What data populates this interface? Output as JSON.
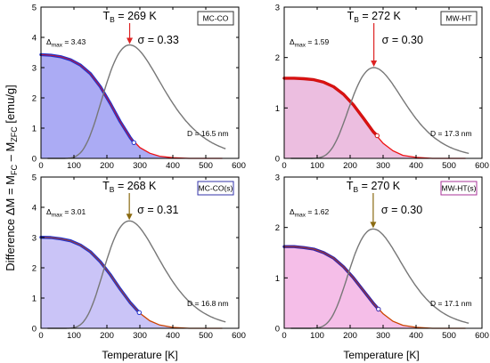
{
  "figure": {
    "ylabel": "Difference  ΔM = M",
    "ylabel_sub1": "FC",
    "ylabel_mid": " – M",
    "ylabel_sub2": "ZFC",
    "ylabel_unit": "  [emu/g]",
    "xlabel_left": "Temperature [K]",
    "xlabel_right": "Temperature [K]"
  },
  "chart_data": [
    {
      "type": "line",
      "panel": "top-left",
      "label": "MC-CO",
      "label_color": "#333333",
      "fill_color": "#8f8ff0",
      "data_color": "#2233cc",
      "fit_color": "#ee1111",
      "arrow_color": "#dd2222",
      "TB_text": "T",
      "TB_sub": "B",
      "TB_value": " = 269 K",
      "TB": 269,
      "sigma_text": "σ = 0.33",
      "sigma": 0.33,
      "delta_text": "Δ",
      "delta_sub": "max",
      "delta_value": " = 3.43",
      "delta_max": 3.43,
      "D_text": "D = 16.5 nm",
      "dist_peak": 3.75,
      "data_end_T": 282,
      "xlim": [
        0,
        600
      ],
      "ylim": [
        0,
        5
      ],
      "xticks": [
        0,
        100,
        200,
        300,
        400,
        500,
        600
      ],
      "yticks": [
        0,
        1,
        2,
        3,
        4,
        5
      ],
      "series": [
        {
          "type": "area",
          "x": [
            0,
            30,
            60,
            90,
            120,
            150,
            180,
            210,
            240,
            270,
            300,
            330,
            360,
            400,
            450,
            500,
            550
          ],
          "y": [
            3.43,
            3.41,
            3.36,
            3.26,
            3.08,
            2.8,
            2.37,
            1.82,
            1.22,
            0.7,
            0.36,
            0.17,
            0.07,
            0.02,
            0.0,
            0.0,
            0.0
          ]
        },
        {
          "type": "line",
          "x": [
            0,
            30,
            60,
            90,
            120,
            150,
            180,
            210,
            240,
            270,
            282
          ],
          "y": [
            3.43,
            3.41,
            3.36,
            3.26,
            3.08,
            2.8,
            2.37,
            1.82,
            1.22,
            0.7,
            0.52
          ]
        }
      ]
    },
    {
      "type": "line",
      "panel": "top-right",
      "label": "MW-HT",
      "label_color": "#333333",
      "fill_color": "#e6a8d6",
      "data_color": "#cc1111",
      "fit_color": "#ee1111",
      "arrow_color": "#dd2222",
      "TB_text": "T",
      "TB_sub": "B",
      "TB_value": " = 272 K",
      "TB": 272,
      "sigma_text": "σ = 0.30",
      "sigma": 0.3,
      "delta_text": "Δ",
      "delta_sub": "max",
      "delta_value": " = 1.59",
      "delta_max": 1.59,
      "D_text": "D = 17.3 nm",
      "dist_peak": 1.8,
      "data_end_T": 282,
      "xlim": [
        0,
        600
      ],
      "ylim": [
        0,
        3
      ],
      "xticks": [
        0,
        100,
        200,
        300,
        400,
        500,
        600
      ],
      "yticks": [
        0,
        1,
        2,
        3
      ],
      "series": [
        {
          "type": "area",
          "x": [
            0,
            30,
            60,
            90,
            120,
            150,
            180,
            210,
            240,
            270,
            300,
            330,
            360,
            400,
            450,
            500,
            550
          ],
          "y": [
            1.59,
            1.59,
            1.58,
            1.56,
            1.51,
            1.42,
            1.27,
            1.06,
            0.8,
            0.53,
            0.3,
            0.15,
            0.06,
            0.02,
            0.0,
            0.0,
            0.0
          ]
        },
        {
          "type": "line",
          "x": [
            0,
            30,
            60,
            90,
            120,
            150,
            180,
            210,
            240,
            270,
            282
          ],
          "y": [
            1.59,
            1.59,
            1.58,
            1.56,
            1.51,
            1.42,
            1.27,
            1.06,
            0.8,
            0.53,
            0.45
          ]
        }
      ]
    },
    {
      "type": "line",
      "panel": "bottom-left",
      "label": "MC-CO(s)",
      "label_color": "#3333aa",
      "fill_color": "#b8b0f4",
      "data_color": "#2233cc",
      "fit_color": "#cc4400",
      "arrow_color": "#8a6a10",
      "TB_text": "T",
      "TB_sub": "B",
      "TB_value": " = 268 K",
      "TB": 268,
      "sigma_text": "σ = 0.31",
      "sigma": 0.31,
      "delta_text": "Δ",
      "delta_sub": "max",
      "delta_value": " = 3.01",
      "delta_max": 3.01,
      "D_text": "D = 16.8 nm",
      "dist_peak": 3.55,
      "data_end_T": 298,
      "xlim": [
        0,
        600
      ],
      "ylim": [
        0,
        5
      ],
      "xticks": [
        0,
        100,
        200,
        300,
        400,
        500,
        600
      ],
      "yticks": [
        0,
        1,
        2,
        3,
        4,
        5
      ],
      "series": [
        {
          "type": "area",
          "x": [
            0,
            30,
            60,
            90,
            120,
            150,
            180,
            210,
            240,
            270,
            300,
            330,
            360,
            400,
            450,
            500,
            550
          ],
          "y": [
            3.01,
            3.0,
            2.96,
            2.89,
            2.75,
            2.53,
            2.2,
            1.78,
            1.3,
            0.86,
            0.5,
            0.25,
            0.11,
            0.03,
            0.0,
            0.0,
            0.0
          ]
        },
        {
          "type": "line",
          "x": [
            0,
            30,
            60,
            90,
            120,
            150,
            180,
            210,
            240,
            270,
            298
          ],
          "y": [
            3.01,
            3.0,
            2.96,
            2.89,
            2.75,
            2.53,
            2.2,
            1.78,
            1.3,
            0.86,
            0.52
          ]
        }
      ]
    },
    {
      "type": "line",
      "panel": "bottom-right",
      "label": "MW-HT(s)",
      "label_color": "#aa3399",
      "fill_color": "#f2a8e0",
      "data_color": "#3322aa",
      "fit_color": "#cc4400",
      "arrow_color": "#8a6a10",
      "TB_text": "T",
      "TB_sub": "B",
      "TB_value": " = 270 K",
      "TB": 270,
      "sigma_text": "σ = 0.30",
      "sigma": 0.3,
      "delta_text": "Δ",
      "delta_sub": "max",
      "delta_value": " = 1.62",
      "delta_max": 1.62,
      "D_text": "D = 17.1 nm",
      "dist_peak": 1.97,
      "data_end_T": 286,
      "xlim": [
        0,
        600
      ],
      "ylim": [
        0,
        3
      ],
      "xticks": [
        0,
        100,
        200,
        300,
        400,
        500,
        600
      ],
      "yticks": [
        0,
        1,
        2,
        3
      ],
      "series": [
        {
          "type": "area",
          "x": [
            0,
            30,
            60,
            90,
            120,
            150,
            180,
            210,
            240,
            270,
            300,
            330,
            360,
            400,
            450,
            500,
            550
          ],
          "y": [
            1.62,
            1.62,
            1.6,
            1.57,
            1.5,
            1.39,
            1.22,
            1.0,
            0.75,
            0.5,
            0.29,
            0.14,
            0.06,
            0.02,
            0.0,
            0.0,
            0.0
          ]
        },
        {
          "type": "line",
          "x": [
            0,
            30,
            60,
            90,
            120,
            150,
            180,
            210,
            240,
            270,
            286
          ],
          "y": [
            1.62,
            1.62,
            1.6,
            1.57,
            1.5,
            1.39,
            1.22,
            1.0,
            0.75,
            0.5,
            0.38
          ]
        }
      ]
    }
  ]
}
